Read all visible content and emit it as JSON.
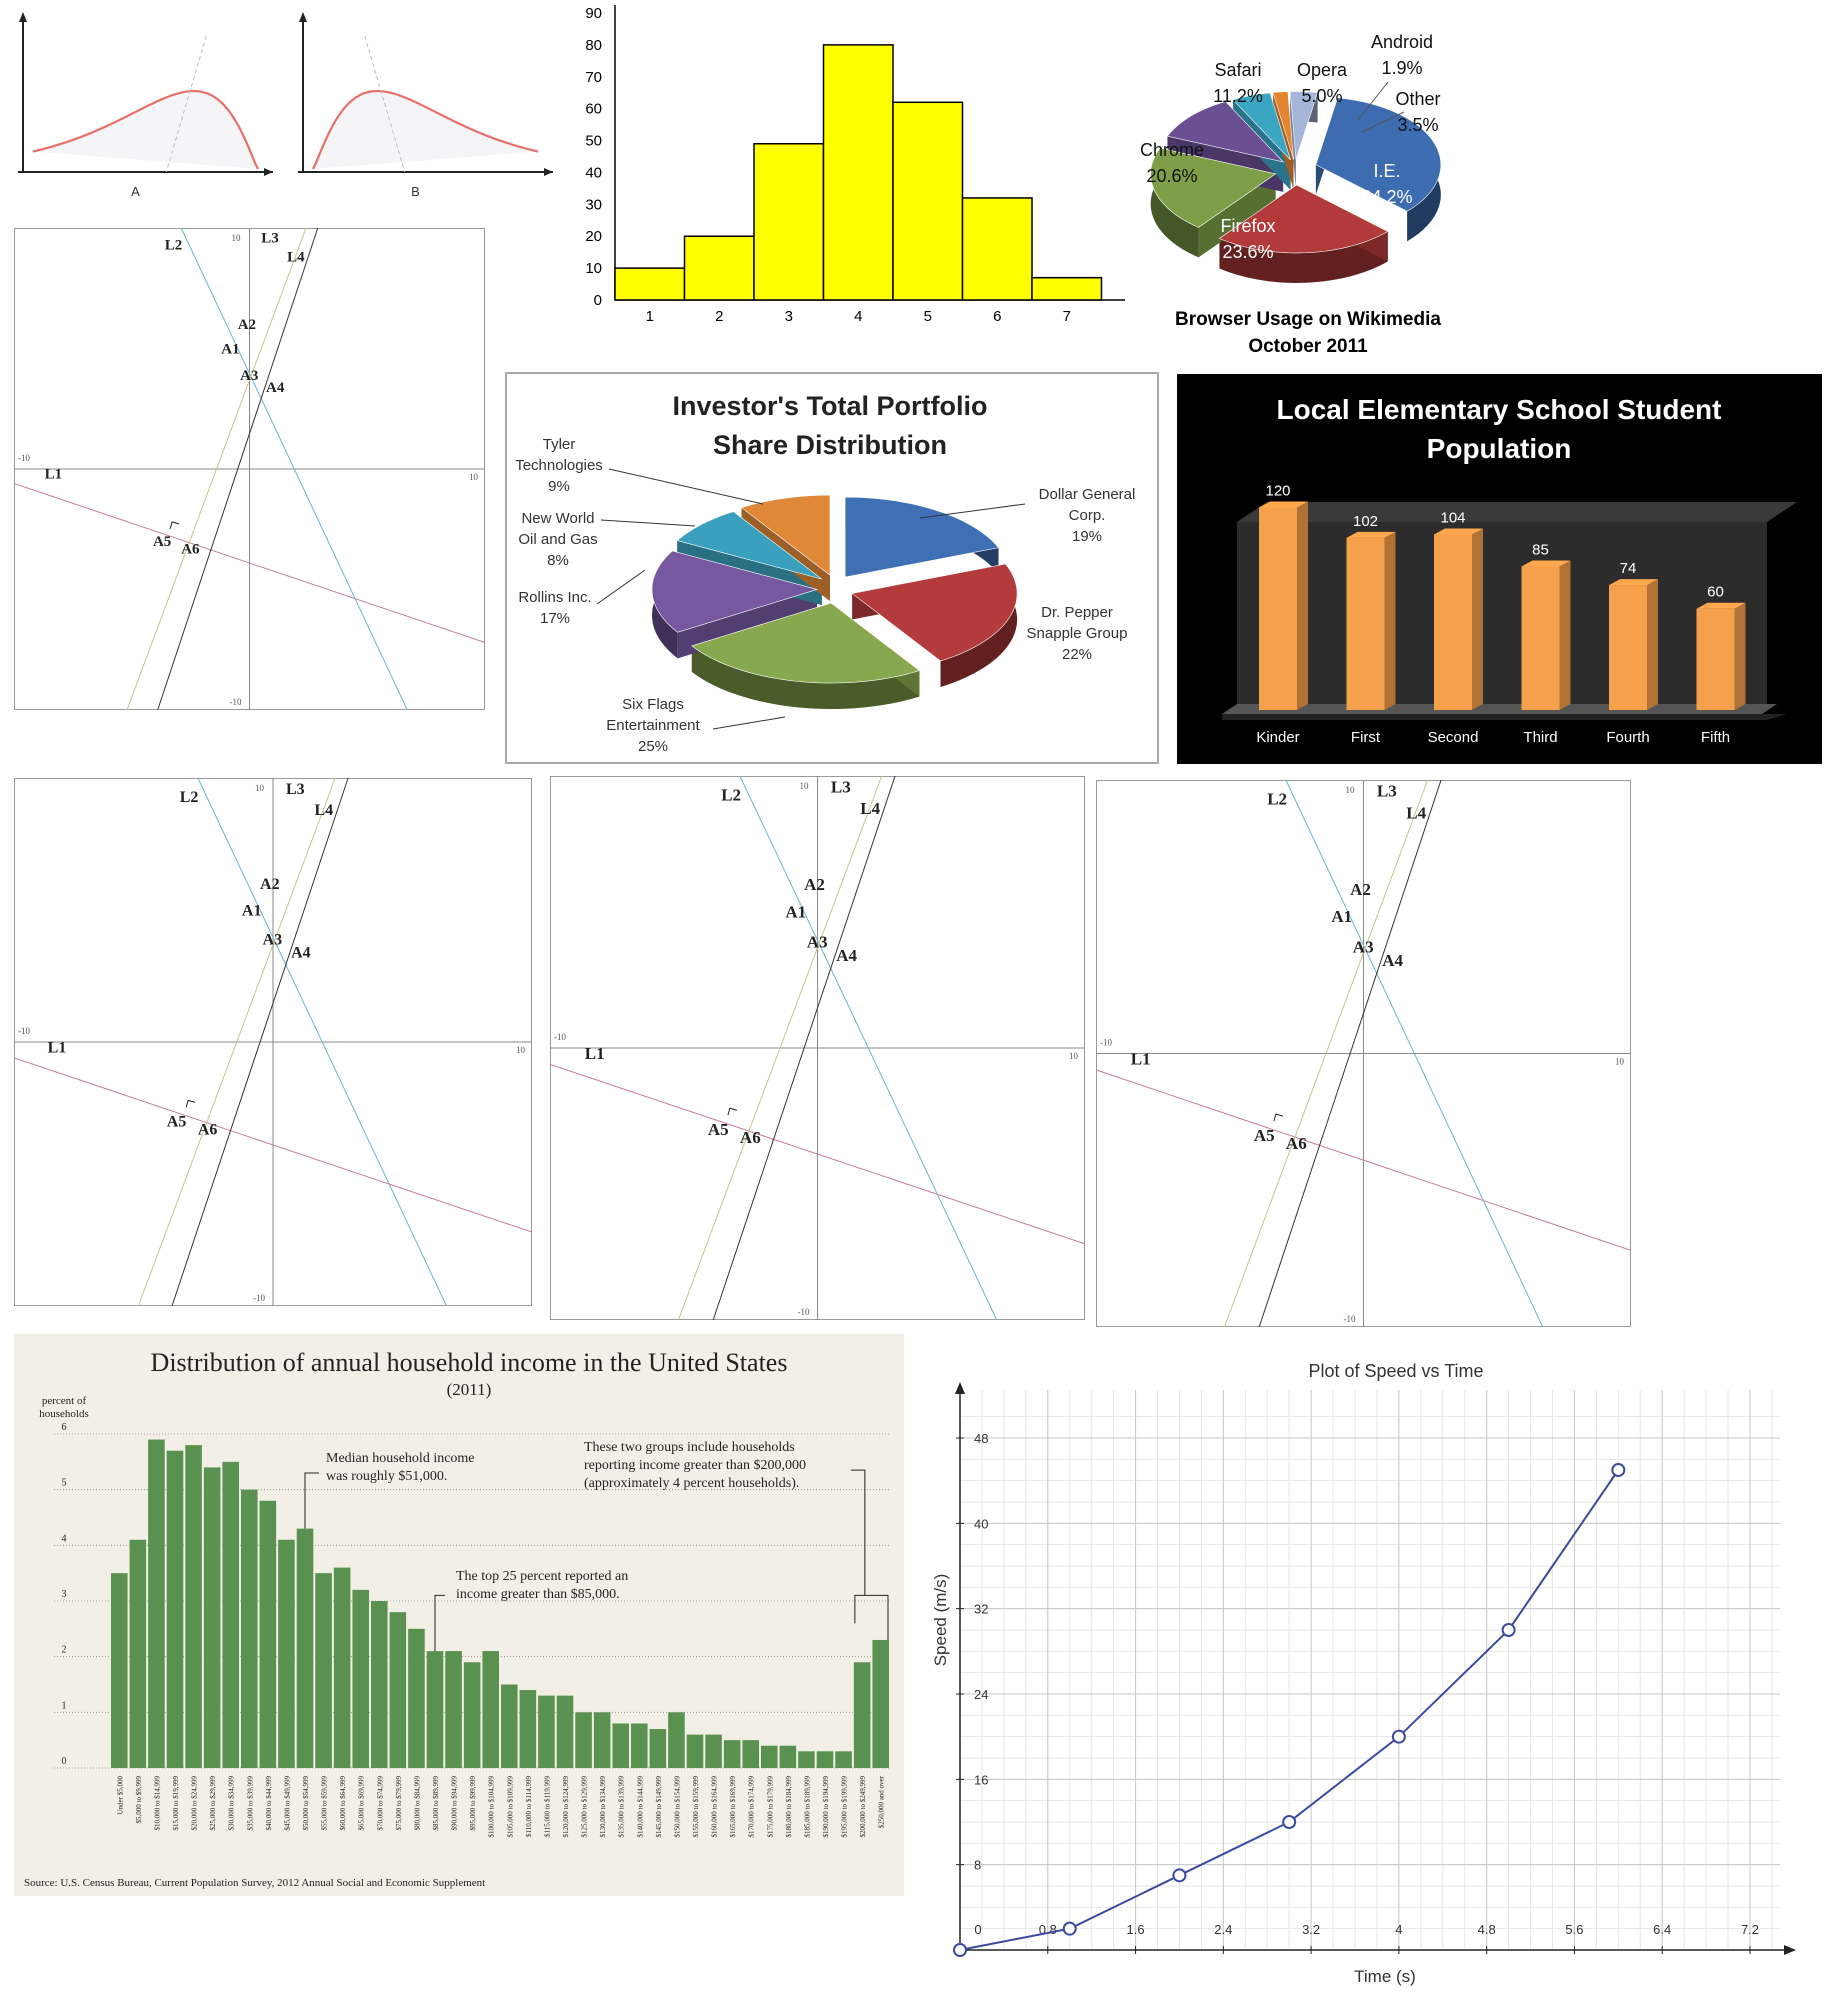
{
  "chart_data": [
    {
      "id": "skew_curves",
      "type": "line",
      "title": "",
      "panels": [
        {
          "label": "A",
          "skew": "left"
        },
        {
          "label": "B",
          "skew": "right"
        }
      ],
      "colors": {
        "curve": "#e8706a",
        "guide": "#bbbbbb"
      }
    },
    {
      "id": "histogram",
      "type": "bar",
      "title": "",
      "categories": [
        "1",
        "2",
        "3",
        "4",
        "5",
        "6",
        "7"
      ],
      "values": [
        10,
        20,
        49,
        80,
        62,
        32,
        7
      ],
      "yticks": [
        "0",
        "10",
        "20",
        "30",
        "40",
        "50",
        "60",
        "70",
        "80",
        "90"
      ],
      "ylim": [
        0,
        90
      ],
      "colors": {
        "bar": "#ffff00",
        "edge": "#000000"
      }
    },
    {
      "id": "browser_pie",
      "type": "pie",
      "title": "Browser Usage on Wikimedia",
      "subtitle": "October 2011",
      "slices": [
        {
          "label": "I.E.",
          "pct": "34.2%",
          "value": 34.2,
          "color": "#3d6db0"
        },
        {
          "label": "Firefox",
          "pct": "23.6%",
          "value": 23.6,
          "color": "#b23a3a"
        },
        {
          "label": "Chrome",
          "pct": "20.6%",
          "value": 20.6,
          "color": "#7e9f47"
        },
        {
          "label": "Safari",
          "pct": "11.2%",
          "value": 11.2,
          "color": "#6a4f93"
        },
        {
          "label": "Opera",
          "pct": "5.0%",
          "value": 5.0,
          "color": "#3aa6c2"
        },
        {
          "label": "Android",
          "pct": "1.9%",
          "value": 1.9,
          "color": "#e3852f"
        },
        {
          "label": "Other",
          "pct": "3.5%",
          "value": 3.5,
          "color": "#a6b6d8"
        }
      ]
    },
    {
      "id": "portfolio_pie",
      "type": "pie",
      "title_line1": "Investor's Total Portfolio",
      "title_line2": "Share Distribution",
      "slices": [
        {
          "label_lines": [
            "Dollar General",
            "Corp."
          ],
          "pct": "19%",
          "value": 19,
          "color": "#3f6fb5"
        },
        {
          "label_lines": [
            "Dr. Pepper",
            "Snapple Group"
          ],
          "pct": "22%",
          "value": 22,
          "color": "#b33b3b"
        },
        {
          "label_lines": [
            "Six Flags",
            "Entertainment"
          ],
          "pct": "25%",
          "value": 25,
          "color": "#88a84f"
        },
        {
          "label_lines": [
            "Rollins Inc."
          ],
          "pct": "17%",
          "value": 17,
          "color": "#7558a0"
        },
        {
          "label_lines": [
            "New World",
            "Oil and Gas"
          ],
          "pct": "8%",
          "value": 8,
          "color": "#3aa0bd"
        },
        {
          "label_lines": [
            "Tyler",
            "Technologies"
          ],
          "pct": "9%",
          "value": 9,
          "color": "#df8838"
        }
      ]
    },
    {
      "id": "school_population",
      "type": "bar",
      "title_line1": "Local Elementary School Student",
      "title_line2": "Population",
      "categories": [
        "Kinder",
        "First",
        "Second",
        "Third",
        "Fourth",
        "Fifth"
      ],
      "values": [
        120,
        102,
        104,
        85,
        74,
        60
      ],
      "value_labels": [
        "120",
        "102",
        "104",
        "85",
        "74",
        "60"
      ],
      "ylim": [
        0,
        125
      ],
      "colors": {
        "bar": "#f5a04a",
        "background": "#000000",
        "text": "#ffffff"
      }
    },
    {
      "id": "line_diagrams",
      "type": "diagram",
      "panels": 4,
      "axis_labels": {
        "top": "10",
        "bottom": "-10",
        "left": "-10",
        "right": "10"
      },
      "line_labels": [
        "L1",
        "L2",
        "L3",
        "L4"
      ],
      "point_labels": [
        "A1",
        "A2",
        "A3",
        "A4",
        "A5",
        "A6"
      ],
      "colors": {
        "L1": "#c87aa0",
        "L2": "#6ab3d6",
        "L3": "#c9c48a",
        "L4": "#333333",
        "axis": "#888888"
      }
    },
    {
      "id": "household_income",
      "type": "bar",
      "title": "Distribution of annual household income in the United States",
      "subtitle": "(2011)",
      "ylabel_line1": "percent of",
      "ylabel_line2": "households",
      "yticks": [
        "0",
        "1",
        "2",
        "3",
        "4",
        "5",
        "6"
      ],
      "ylim": [
        0,
        6
      ],
      "categories": [
        "Under $5,000",
        "$5,000 to $9,999",
        "$10,000 to $14,999",
        "$15,000 to $19,999",
        "$20,000 to $24,999",
        "$25,000 to $29,999",
        "$30,000 to $34,999",
        "$35,000 to $39,999",
        "$40,000 to $44,999",
        "$45,000 to $49,999",
        "$50,000 to $54,999",
        "$55,000 to $59,999",
        "$60,000 to $64,999",
        "$65,000 to $69,999",
        "$70,000 to $74,999",
        "$75,000 to $79,999",
        "$80,000 to $84,999",
        "$85,000 to $89,999",
        "$90,000 to $94,999",
        "$95,000 to $99,999",
        "$100,000 to $104,999",
        "$105,000 to $109,999",
        "$110,000 to $114,999",
        "$115,000 to $119,999",
        "$120,000 to $124,999",
        "$125,000 to $129,999",
        "$130,000 to $134,999",
        "$135,000 to $139,999",
        "$140,000 to $144,999",
        "$145,000 to $149,999",
        "$150,000 to $154,999",
        "$155,000 to $159,999",
        "$160,000 to $164,999",
        "$165,000 to $169,999",
        "$170,000 to $174,999",
        "$175,000 to $179,999",
        "$180,000 to $184,999",
        "$185,000 to $189,999",
        "$190,000 to $194,999",
        "$195,000 to $199,999",
        "$200,000 to $249,999",
        "$250,000 and over"
      ],
      "values": [
        3.5,
        4.1,
        5.9,
        5.7,
        5.8,
        5.4,
        5.5,
        5.0,
        4.8,
        4.1,
        4.3,
        3.5,
        3.6,
        3.2,
        3.0,
        2.8,
        2.5,
        2.1,
        2.1,
        1.9,
        2.1,
        1.5,
        1.4,
        1.3,
        1.3,
        1.0,
        1.0,
        0.8,
        0.8,
        0.7,
        1.0,
        0.6,
        0.6,
        0.5,
        0.5,
        0.4,
        0.4,
        0.3,
        0.3,
        0.3,
        1.9,
        2.3
      ],
      "annotations": [
        {
          "line1": "Median household income",
          "line2": "was roughly $51,000."
        },
        {
          "line1": "The top 25 percent reported an",
          "line2": "income greater than $85,000."
        },
        {
          "line1": "These two groups include households",
          "line2": "reporting income greater than $200,000",
          "line3": "(approximately 4 percent households)."
        }
      ],
      "source": "Source: U.S. Census Bureau, Current Population Survey, 2012 Annual Social and Economic Supplement",
      "colors": {
        "bar": "#5a9150",
        "background": "#f2f0e6"
      }
    },
    {
      "id": "speed_time",
      "type": "line",
      "title": "Plot of Speed vs Time",
      "xlabel": "Time (s)",
      "ylabel": "Speed (m/s)",
      "x": [
        0,
        1,
        2,
        3,
        4,
        5,
        6
      ],
      "y": [
        0,
        2,
        7,
        12,
        20,
        30,
        45
      ],
      "xticks": [
        "0",
        "0.8",
        "1.6",
        "2.4",
        "3.2",
        "4",
        "4.8",
        "5.6",
        "6.4",
        "7.2"
      ],
      "yticks": [
        "8",
        "16",
        "24",
        "32",
        "40",
        "48"
      ],
      "xlim": [
        0,
        7.2
      ],
      "ylim": [
        0,
        48
      ],
      "colors": {
        "line": "#3b4aa0",
        "grid": "#d8d8d8"
      }
    }
  ]
}
